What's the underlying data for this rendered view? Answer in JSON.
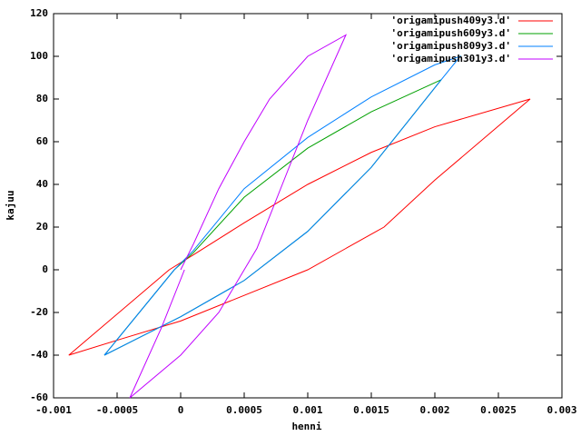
{
  "chart_data": {
    "type": "line",
    "xlabel": "henni",
    "ylabel": "kajuu",
    "xlim": [
      -0.001,
      0.003
    ],
    "xticks": [
      -0.001,
      -0.0005,
      0,
      0.0005,
      0.001,
      0.0015,
      0.002,
      0.0025,
      0.003
    ],
    "ylim": [
      -60,
      120
    ],
    "yticks": [
      -60,
      -40,
      -20,
      0,
      20,
      40,
      60,
      80,
      100,
      120
    ],
    "legend": "top-right",
    "series": [
      {
        "name": "'origamipush409y3.d'",
        "color": "#ff0000",
        "x": [
          -9e-05,
          -0.00088,
          -0.0005,
          0,
          0.0005,
          0.001,
          0.0013,
          0.0016,
          0.002,
          0.00275,
          0.002,
          0.0015,
          0.001,
          0.0005,
          0.0001,
          -9e-05
        ],
        "values": [
          0,
          -40,
          -33,
          -24,
          -12,
          0,
          10,
          20,
          42,
          80,
          67,
          55,
          40,
          22,
          7,
          0
        ]
      },
      {
        "name": "'origamipush609y3.d'",
        "color": "#00a000",
        "x": [
          -5e-05,
          -0.0006,
          -0.0003,
          0,
          0.0005,
          0.001,
          0.0015,
          0.00205,
          0.0015,
          0.001,
          0.0005,
          0.0001,
          -5e-05
        ],
        "values": [
          0,
          -40,
          -31,
          -22,
          -5,
          18,
          48,
          89,
          74,
          57,
          34,
          8,
          0
        ]
      },
      {
        "name": "'origamipush809y3.d'",
        "color": "#0080ff",
        "x": [
          -5e-05,
          -0.0006,
          -0.0003,
          0,
          0.0005,
          0.001,
          0.0015,
          0.00205,
          0.0022,
          0.002,
          0.0015,
          0.001,
          0.0005,
          0.0001,
          -5e-05
        ],
        "values": [
          0,
          -40,
          -31,
          -22,
          -5,
          18,
          48,
          89,
          100,
          96,
          81,
          62,
          38,
          9,
          0
        ]
      },
      {
        "name": "'origamipush301y3.d'",
        "color": "#c000ff",
        "x": [
          3e-05,
          -0.00015,
          -0.0004,
          0,
          0.0003,
          0.0006,
          0.0008,
          0.001,
          0.0013,
          0.001,
          0.0007,
          0.0005,
          0.0003,
          0.0001,
          0
        ],
        "values": [
          0,
          -27,
          -60,
          -40,
          -20,
          10,
          40,
          70,
          110,
          100,
          80,
          60,
          38,
          12,
          0
        ]
      }
    ]
  }
}
